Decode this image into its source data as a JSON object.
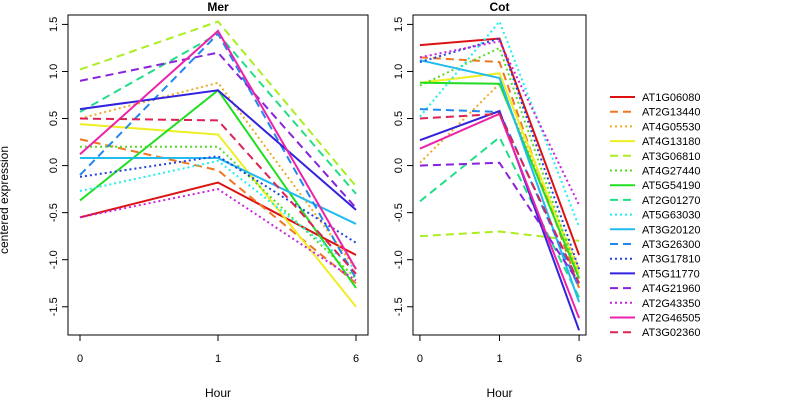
{
  "chart_data": {
    "type": "line",
    "ylabel": "centered expression",
    "legend_position": "right",
    "series_styles": [
      {
        "name": "AT1G06080",
        "color": "#dd1111",
        "dash": "solid"
      },
      {
        "name": "AT2G13440",
        "color": "#ee7722",
        "dash": "dashed"
      },
      {
        "name": "AT4G05530",
        "color": "#eeaa22",
        "dash": "dotted"
      },
      {
        "name": "AT4G13180",
        "color": "#eeee22",
        "dash": "solid"
      },
      {
        "name": "AT3G06810",
        "color": "#aaee22",
        "dash": "dashed"
      },
      {
        "name": "AT4G27440",
        "color": "#55dd22",
        "dash": "dotted"
      },
      {
        "name": "AT5G54190",
        "color": "#22dd22",
        "dash": "solid"
      },
      {
        "name": "AT2G01270",
        "color": "#22dd88",
        "dash": "dashed"
      },
      {
        "name": "AT5G63030",
        "color": "#22eeee",
        "dash": "dotted"
      },
      {
        "name": "AT3G20120",
        "color": "#22bbee",
        "dash": "solid"
      },
      {
        "name": "AT3G26300",
        "color": "#2288ee",
        "dash": "dashed"
      },
      {
        "name": "AT3G17810",
        "color": "#2244dd",
        "dash": "dotted"
      },
      {
        "name": "AT5G11770",
        "color": "#3322dd",
        "dash": "solid"
      },
      {
        "name": "AT4G21960",
        "color": "#8822dd",
        "dash": "dashed"
      },
      {
        "name": "AT2G43350",
        "color": "#cc22dd",
        "dash": "dotted"
      },
      {
        "name": "AT2G46505",
        "color": "#ee22aa",
        "dash": "solid"
      },
      {
        "name": "AT3G02360",
        "color": "#dd2255",
        "dash": "dashed"
      }
    ],
    "panels": [
      {
        "title": "Mer",
        "xlabel": "Hour",
        "categories": [
          "0",
          "1",
          "6"
        ],
        "yticks": [
          "-1.5",
          "-1.0",
          "-0.5",
          "0.0",
          "0.5",
          "1.0",
          "1.5"
        ],
        "ylim": [
          -1.8,
          1.6
        ],
        "series": [
          {
            "name": "AT1G06080",
            "values": [
              -0.55,
              -0.18,
              -0.95
            ]
          },
          {
            "name": "AT2G13440",
            "values": [
              0.28,
              -0.05,
              -1.25
            ]
          },
          {
            "name": "AT4G05530",
            "values": [
              0.5,
              0.88,
              -1.1
            ]
          },
          {
            "name": "AT4G13180",
            "values": [
              0.44,
              0.33,
              -1.5
            ]
          },
          {
            "name": "AT3G06810",
            "values": [
              1.02,
              1.53,
              -0.22
            ]
          },
          {
            "name": "AT4G27440",
            "values": [
              0.2,
              0.2,
              -1.2
            ]
          },
          {
            "name": "AT5G54190",
            "values": [
              -0.37,
              0.8,
              -1.3
            ]
          },
          {
            "name": "AT2G01270",
            "values": [
              0.57,
              1.4,
              -0.3
            ]
          },
          {
            "name": "AT5G63030",
            "values": [
              -0.27,
              0.05,
              -1.1
            ]
          },
          {
            "name": "AT3G20120",
            "values": [
              0.08,
              0.08,
              -0.62
            ]
          },
          {
            "name": "AT3G26300",
            "values": [
              -0.1,
              1.4,
              -1.2
            ]
          },
          {
            "name": "AT3G17810",
            "values": [
              -0.12,
              0.1,
              -0.82
            ]
          },
          {
            "name": "AT5G11770",
            "values": [
              0.6,
              0.8,
              -0.47
            ]
          },
          {
            "name": "AT4G21960",
            "values": [
              0.9,
              1.2,
              -0.45
            ]
          },
          {
            "name": "AT2G43350",
            "values": [
              -0.55,
              -0.25,
              -1.22
            ]
          },
          {
            "name": "AT2G46505",
            "values": [
              0.12,
              1.43,
              -1.1
            ]
          },
          {
            "name": "AT3G02360",
            "values": [
              0.5,
              0.48,
              -1.15
            ]
          }
        ]
      },
      {
        "title": "Cot",
        "xlabel": "Hour",
        "categories": [
          "0",
          "1",
          "6"
        ],
        "yticks": [
          "-1.5",
          "-1.0",
          "-0.5",
          "0.0",
          "0.5",
          "1.0",
          "1.5"
        ],
        "ylim": [
          -1.8,
          1.6
        ],
        "series": [
          {
            "name": "AT1G06080",
            "values": [
              1.28,
              1.35,
              -0.95
            ]
          },
          {
            "name": "AT2G13440",
            "values": [
              1.15,
              1.1,
              -1.3
            ]
          },
          {
            "name": "AT4G05530",
            "values": [
              0.03,
              0.87,
              -1.1
            ]
          },
          {
            "name": "AT4G13180",
            "values": [
              0.88,
              0.98,
              -1.15
            ]
          },
          {
            "name": "AT3G06810",
            "values": [
              -0.75,
              -0.7,
              -0.8
            ]
          },
          {
            "name": "AT4G27440",
            "values": [
              0.85,
              1.25,
              -1.2
            ]
          },
          {
            "name": "AT5G54190",
            "values": [
              0.88,
              0.87,
              -1.2
            ]
          },
          {
            "name": "AT2G01270",
            "values": [
              -0.38,
              0.3,
              -1.4
            ]
          },
          {
            "name": "AT5G63030",
            "values": [
              0.52,
              1.53,
              -0.65
            ]
          },
          {
            "name": "AT3G20120",
            "values": [
              1.12,
              0.93,
              -1.45
            ]
          },
          {
            "name": "AT3G26300",
            "values": [
              0.6,
              0.57,
              -1.3
            ]
          },
          {
            "name": "AT3G17810",
            "values": [
              1.1,
              1.35,
              -1.1
            ]
          },
          {
            "name": "AT5G11770",
            "values": [
              0.27,
              0.58,
              -1.75
            ]
          },
          {
            "name": "AT4G21960",
            "values": [
              0.0,
              0.03,
              -1.25
            ]
          },
          {
            "name": "AT2G43350",
            "values": [
              1.15,
              1.32,
              -0.42
            ]
          },
          {
            "name": "AT2G46505",
            "values": [
              0.18,
              0.55,
              -1.62
            ]
          },
          {
            "name": "AT3G02360",
            "values": [
              0.5,
              0.55,
              -1.25
            ]
          }
        ]
      }
    ]
  }
}
